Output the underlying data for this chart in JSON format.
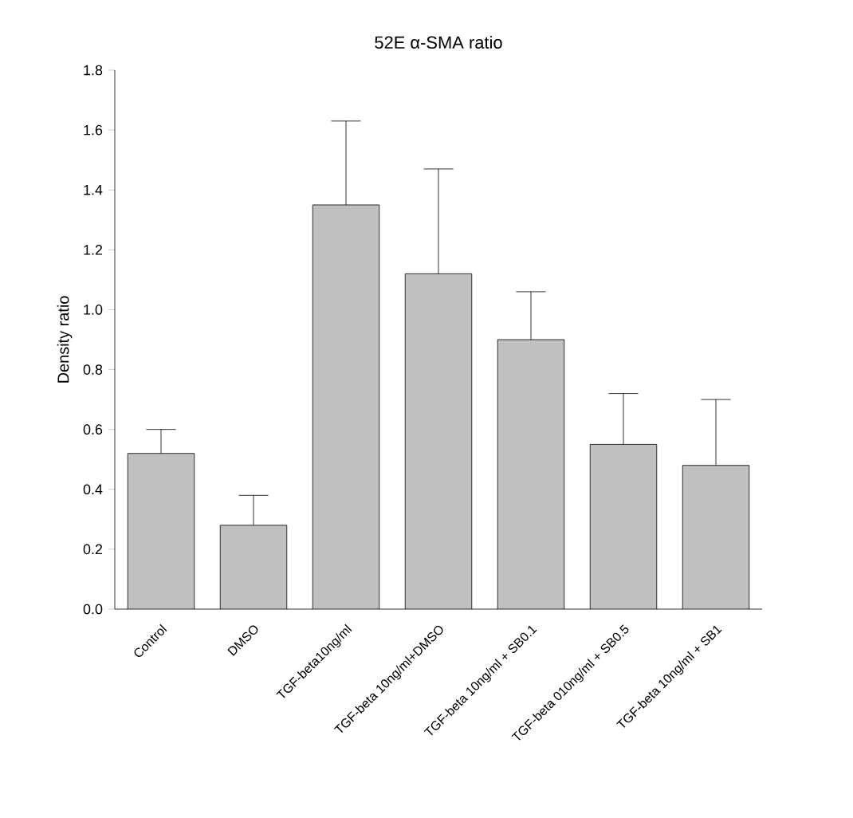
{
  "chart_data": {
    "type": "bar",
    "title": "52E α-SMA ratio",
    "ylabel": "Density ratio",
    "categories": [
      "Control",
      "DMSO",
      "TGF-beta10ng/ml",
      "TGF-beta 10ng/ml+DMSO",
      "TGF-beta 10ng/ml + SB0.1",
      "TGF-beta 010ng/ml + SB0.5",
      "TGF-beta 10ng/ml + SB1"
    ],
    "values": [
      0.52,
      0.28,
      1.35,
      1.12,
      0.9,
      0.55,
      0.48
    ],
    "errors": [
      [
        0.52,
        0.6
      ],
      [
        0.28,
        0.38
      ],
      [
        1.35,
        1.63
      ],
      [
        1.12,
        1.47
      ],
      [
        0.9,
        1.06
      ],
      [
        0.55,
        0.72
      ],
      [
        0.48,
        0.7
      ]
    ],
    "color": "#c0c0c0",
    "ylim": [
      0,
      1.8
    ],
    "yticks": [
      {
        "value": 0,
        "label": "0.0"
      },
      {
        "value": 0.2,
        "label": "0.2"
      },
      {
        "value": 0.4,
        "label": "0.4"
      },
      {
        "value": 0.6,
        "label": "0.6"
      },
      {
        "value": 0.8,
        "label": "0.8"
      },
      {
        "value": 1.0,
        "label": "1.0"
      },
      {
        "value": 1.2,
        "label": "1.2"
      },
      {
        "value": 1.4,
        "label": "1.4"
      },
      {
        "value": 1.6,
        "label": "1.6"
      },
      {
        "value": 1.8,
        "label": "1.8"
      }
    ]
  }
}
